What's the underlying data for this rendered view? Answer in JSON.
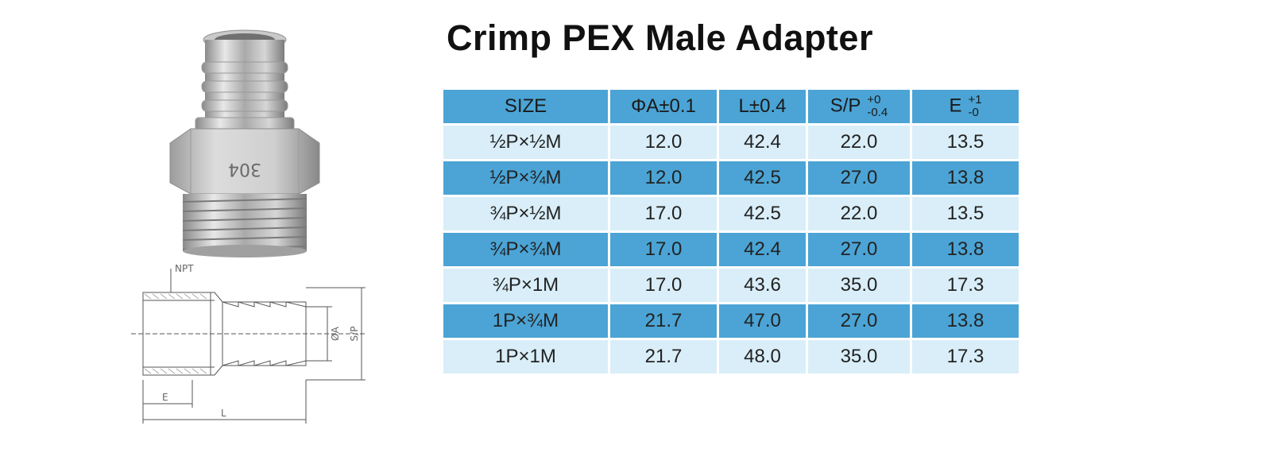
{
  "title": "Crimp PEX Male Adapter",
  "photo": {
    "stamp_text": "304"
  },
  "drawing": {
    "npt_label": "NPT",
    "a_label": "ØA",
    "sp_label": "S/P",
    "e_label": "E",
    "l_label": "L"
  },
  "table": {
    "headers": {
      "size": "SIZE",
      "a": "ΦA±0.1",
      "l": "L±0.4",
      "sp": "S/P",
      "sp_tol_plus": "+0",
      "sp_tol_minus": "-0.4",
      "e": "E",
      "e_tol_plus": "+1",
      "e_tol_minus": "-0"
    },
    "rows": [
      {
        "size": "½P×½M",
        "a": "12.0",
        "l": "42.4",
        "sp": "22.0",
        "e": "13.5"
      },
      {
        "size": "½P×¾M",
        "a": "12.0",
        "l": "42.5",
        "sp": "27.0",
        "e": "13.8"
      },
      {
        "size": "¾P×½M",
        "a": "17.0",
        "l": "42.5",
        "sp": "22.0",
        "e": "13.5"
      },
      {
        "size": "¾P×¾M",
        "a": "17.0",
        "l": "42.4",
        "sp": "27.0",
        "e": "13.8"
      },
      {
        "size": "¾P×1M",
        "a": "17.0",
        "l": "43.6",
        "sp": "35.0",
        "e": "17.3"
      },
      {
        "size": "1P×¾M",
        "a": "21.7",
        "l": "47.0",
        "sp": "27.0",
        "e": "13.8"
      },
      {
        "size": "1P×1M",
        "a": "21.7",
        "l": "48.0",
        "sp": "35.0",
        "e": "17.3"
      }
    ]
  },
  "colors": {
    "header_blue": "#4ba4d5",
    "row_light": "#d9eef8",
    "steel": "#bfbfbf"
  }
}
